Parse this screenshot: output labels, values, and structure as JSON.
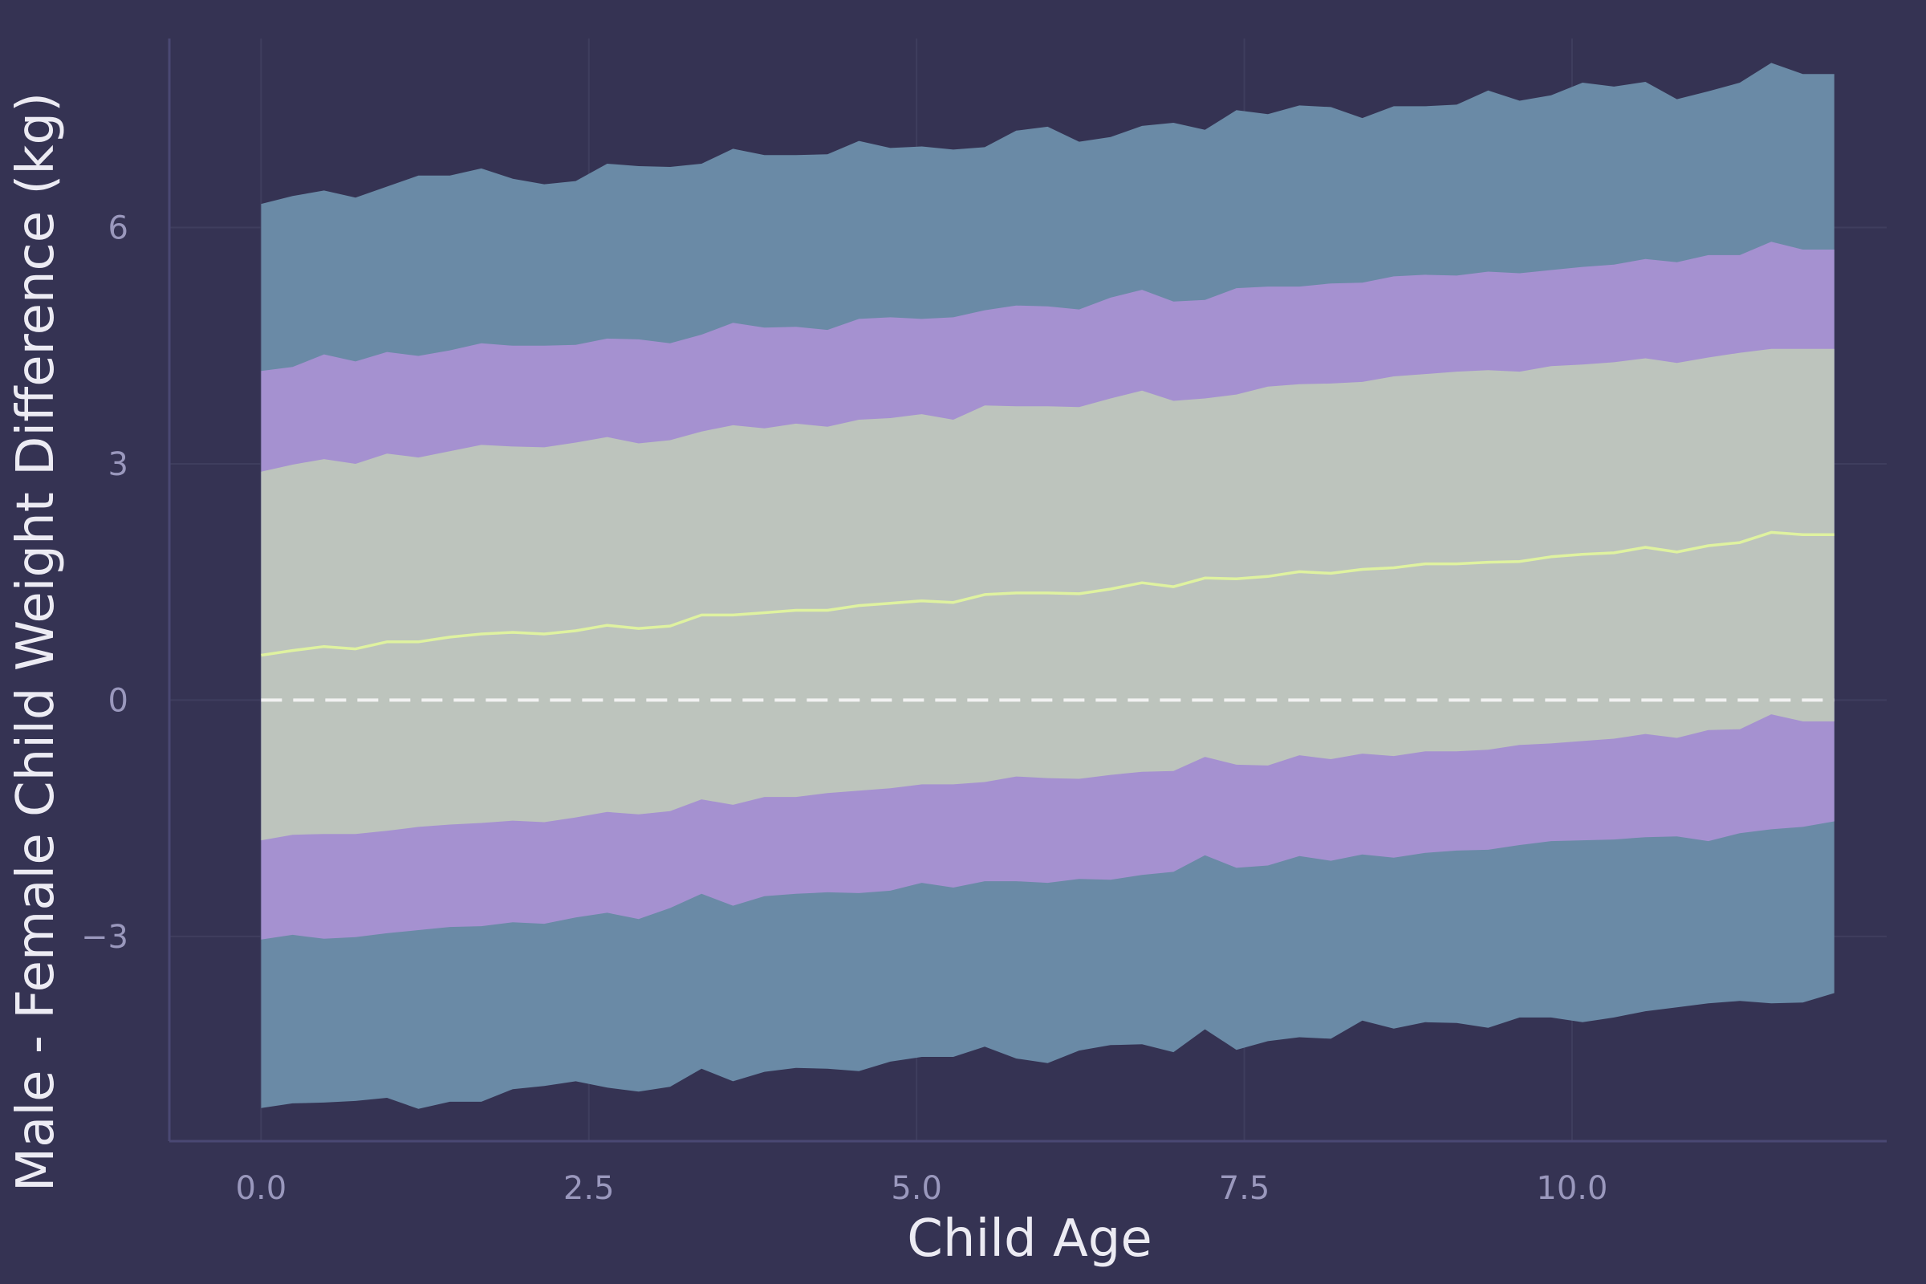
{
  "chart_data": {
    "type": "area",
    "title": "",
    "xlabel": "Child Age",
    "ylabel": "Male - Female Child Weight Difference (kg)",
    "xlim": [
      -0.7,
      12.4
    ],
    "ylim": [
      -5.6,
      8.4
    ],
    "grid": true,
    "x_ticks": [
      {
        "value": 0.0,
        "label": "0.0"
      },
      {
        "value": 2.5,
        "label": "2.5"
      },
      {
        "value": 5.0,
        "label": "5.0"
      },
      {
        "value": 7.5,
        "label": "7.5"
      },
      {
        "value": 10.0,
        "label": "10.0"
      }
    ],
    "y_ticks": [
      {
        "value": -3,
        "label": "−3"
      },
      {
        "value": 0,
        "label": "0"
      },
      {
        "value": 3,
        "label": "3"
      },
      {
        "value": 6,
        "label": "6"
      }
    ],
    "reference_line": {
      "y": 0,
      "style": "dashed",
      "color": "#f2f2f2"
    },
    "x": [
      0.0,
      0.24,
      0.48,
      0.72,
      0.96,
      1.2,
      1.44,
      1.68,
      1.92,
      2.16,
      2.4,
      2.64,
      2.88,
      3.12,
      3.36,
      3.6,
      3.84,
      4.08,
      4.32,
      4.56,
      4.8,
      5.04,
      5.28,
      5.52,
      5.76,
      6.0,
      6.24,
      6.48,
      6.72,
      6.96,
      7.2,
      7.44,
      7.68,
      7.92,
      8.16,
      8.4,
      8.64,
      8.88,
      9.12,
      9.36,
      9.6,
      9.84,
      10.08,
      10.32,
      10.56,
      10.8,
      11.04,
      11.28,
      11.52,
      11.76,
      12.0
    ],
    "bands": [
      {
        "color": "#6a8aa6",
        "upper": [
          6.3,
          6.4,
          6.47,
          6.38,
          6.52,
          6.66,
          6.66,
          6.75,
          6.62,
          6.55,
          6.59,
          6.81,
          6.78,
          6.77,
          6.81,
          7.0,
          6.92,
          6.92,
          6.93,
          7.1,
          7.01,
          7.03,
          6.99,
          7.02,
          7.23,
          7.28,
          7.09,
          7.15,
          7.29,
          7.33,
          7.24,
          7.49,
          7.44,
          7.55,
          7.53,
          7.39,
          7.54,
          7.54,
          7.56,
          7.74,
          7.61,
          7.68,
          7.84,
          7.79,
          7.85,
          7.63,
          7.73,
          7.84,
          8.09,
          7.95,
          7.95
        ],
        "lower": [
          -5.18,
          -5.12,
          -5.11,
          -5.09,
          -5.05,
          -5.19,
          -5.1,
          -5.1,
          -4.94,
          -4.9,
          -4.84,
          -4.92,
          -4.97,
          -4.91,
          -4.68,
          -4.84,
          -4.72,
          -4.67,
          -4.68,
          -4.71,
          -4.59,
          -4.53,
          -4.53,
          -4.4,
          -4.55,
          -4.61,
          -4.45,
          -4.38,
          -4.37,
          -4.47,
          -4.18,
          -4.44,
          -4.33,
          -4.28,
          -4.3,
          -4.07,
          -4.17,
          -4.09,
          -4.1,
          -4.16,
          -4.03,
          -4.03,
          -4.09,
          -4.03,
          -3.95,
          -3.9,
          -3.85,
          -3.82,
          -3.85,
          -3.84,
          -3.72
        ]
      },
      {
        "color": "#a591d0",
        "upper": [
          4.18,
          4.23,
          4.39,
          4.3,
          4.42,
          4.37,
          4.44,
          4.53,
          4.5,
          4.5,
          4.51,
          4.59,
          4.58,
          4.53,
          4.64,
          4.79,
          4.73,
          4.74,
          4.7,
          4.84,
          4.86,
          4.84,
          4.86,
          4.95,
          5.01,
          5.0,
          4.96,
          5.11,
          5.21,
          5.06,
          5.08,
          5.23,
          5.25,
          5.25,
          5.29,
          5.3,
          5.38,
          5.4,
          5.39,
          5.44,
          5.42,
          5.46,
          5.5,
          5.53,
          5.6,
          5.56,
          5.65,
          5.65,
          5.82,
          5.72,
          5.72
        ],
        "lower": [
          -3.04,
          -2.98,
          -3.03,
          -3.01,
          -2.96,
          -2.92,
          -2.88,
          -2.87,
          -2.82,
          -2.84,
          -2.76,
          -2.7,
          -2.78,
          -2.64,
          -2.46,
          -2.61,
          -2.49,
          -2.46,
          -2.44,
          -2.45,
          -2.42,
          -2.32,
          -2.38,
          -2.3,
          -2.3,
          -2.32,
          -2.27,
          -2.28,
          -2.22,
          -2.18,
          -1.97,
          -2.13,
          -2.1,
          -1.98,
          -2.04,
          -1.96,
          -2.0,
          -1.94,
          -1.91,
          -1.9,
          -1.84,
          -1.79,
          -1.78,
          -1.77,
          -1.74,
          -1.73,
          -1.79,
          -1.69,
          -1.64,
          -1.61,
          -1.54
        ]
      },
      {
        "color": "#bdc4bd",
        "upper": [
          2.9,
          2.99,
          3.06,
          3.0,
          3.13,
          3.08,
          3.16,
          3.24,
          3.22,
          3.21,
          3.27,
          3.34,
          3.26,
          3.3,
          3.41,
          3.49,
          3.45,
          3.51,
          3.47,
          3.56,
          3.58,
          3.63,
          3.56,
          3.74,
          3.73,
          3.73,
          3.72,
          3.83,
          3.93,
          3.8,
          3.83,
          3.88,
          3.98,
          4.01,
          4.02,
          4.04,
          4.11,
          4.14,
          4.17,
          4.19,
          4.17,
          4.24,
          4.26,
          4.29,
          4.34,
          4.28,
          4.35,
          4.41,
          4.46,
          4.46,
          4.46
        ],
        "lower": [
          -1.78,
          -1.71,
          -1.7,
          -1.7,
          -1.66,
          -1.61,
          -1.58,
          -1.56,
          -1.53,
          -1.55,
          -1.49,
          -1.42,
          -1.45,
          -1.41,
          -1.26,
          -1.33,
          -1.23,
          -1.23,
          -1.18,
          -1.15,
          -1.12,
          -1.07,
          -1.07,
          -1.04,
          -0.97,
          -0.99,
          -1.0,
          -0.95,
          -0.91,
          -0.9,
          -0.72,
          -0.82,
          -0.83,
          -0.7,
          -0.75,
          -0.68,
          -0.71,
          -0.65,
          -0.65,
          -0.63,
          -0.57,
          -0.55,
          -0.52,
          -0.49,
          -0.43,
          -0.48,
          -0.38,
          -0.37,
          -0.18,
          -0.27,
          -0.27
        ]
      }
    ],
    "series": [
      {
        "color": "#dff2a0",
        "values": [
          0.57,
          0.63,
          0.68,
          0.65,
          0.74,
          0.74,
          0.8,
          0.84,
          0.86,
          0.84,
          0.88,
          0.95,
          0.91,
          0.94,
          1.08,
          1.08,
          1.11,
          1.14,
          1.14,
          1.2,
          1.23,
          1.26,
          1.24,
          1.34,
          1.36,
          1.36,
          1.35,
          1.41,
          1.49,
          1.44,
          1.55,
          1.54,
          1.57,
          1.63,
          1.61,
          1.66,
          1.68,
          1.73,
          1.73,
          1.75,
          1.76,
          1.82,
          1.85,
          1.87,
          1.94,
          1.88,
          1.96,
          2.0,
          2.13,
          2.1,
          2.1
        ]
      }
    ],
    "colors": {
      "background": "#353353",
      "grid": "#3f3e5e",
      "axis_line": "#4a4873",
      "tick_label": "#9a98bd",
      "axis_title": "#ecebf3"
    }
  }
}
